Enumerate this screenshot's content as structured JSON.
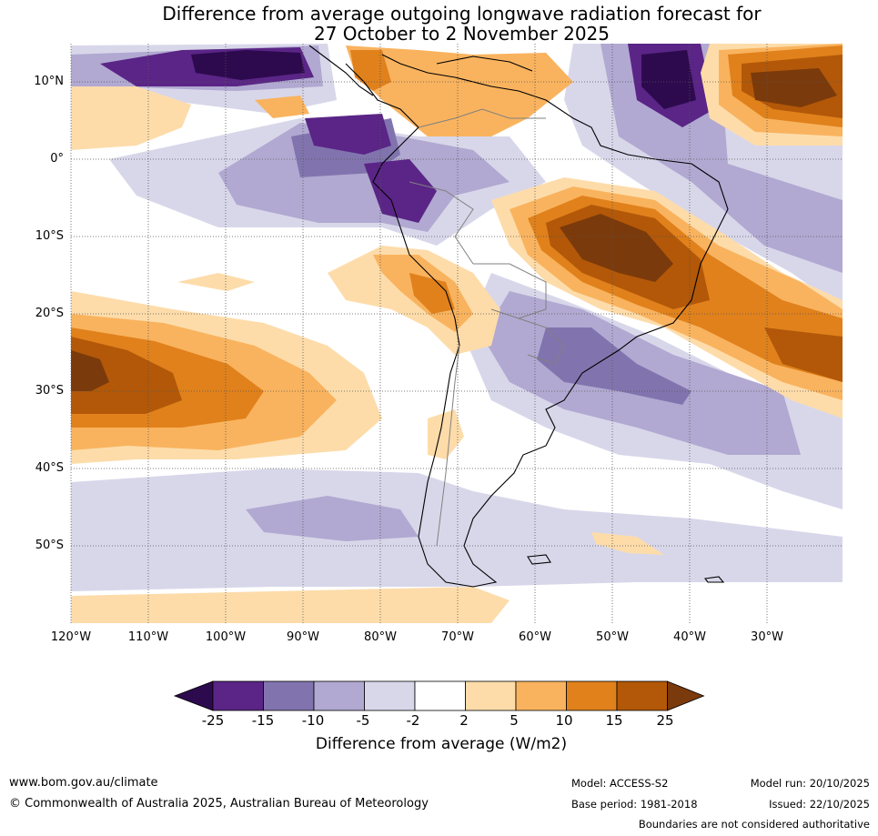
{
  "title": {
    "line1": "Difference from average outgoing longwave radiation forecast for",
    "line2": "27 October to 2 November 2025"
  },
  "map": {
    "lat_labels": [
      "10°N",
      "0°",
      "10°S",
      "20°S",
      "30°S",
      "40°S",
      "50°S"
    ],
    "lon_labels": [
      "120°W",
      "110°W",
      "100°W",
      "90°W",
      "80°W",
      "70°W",
      "60°W",
      "50°W",
      "40°W",
      "30°W"
    ]
  },
  "colorbar": {
    "title": "Difference from average (W/m2)",
    "ticks": [
      "-25",
      "-15",
      "-10",
      "-5",
      "-2",
      "2",
      "5",
      "10",
      "15",
      "25"
    ],
    "colors": [
      "#2d0a4e",
      "#5a2586",
      "#8174ae",
      "#b1a9d1",
      "#d8d7ea",
      "#ffffff",
      "#fddcaa",
      "#f9b35e",
      "#e0811c",
      "#b25808",
      "#7b3a0b"
    ]
  },
  "footer": {
    "website": "www.bom.gov.au/climate",
    "copyright": "© Commonwealth of Australia 2025, Australian Bureau of Meteorology",
    "model": "Model: ACCESS-S2",
    "base_period": "Base period: 1981-2018",
    "model_run": "Model run: 20/10/2025",
    "issued": "Issued: 22/10/2025",
    "disclaimer": "Boundaries are not considered authoritative"
  }
}
